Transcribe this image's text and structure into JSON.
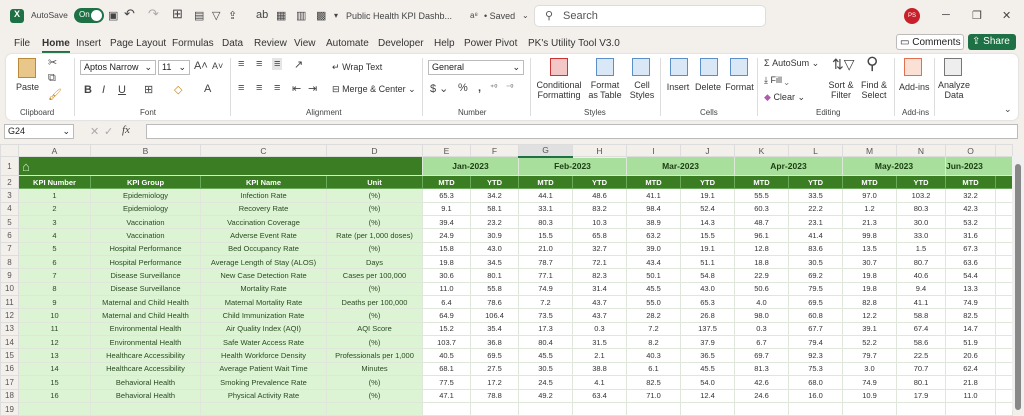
{
  "titlebar": {
    "autosave_label": "AutoSave",
    "autosave_state": "On",
    "file_name": "Public Health KPI Dashb...",
    "saved_status": "• Saved",
    "search_placeholder": "Search",
    "user_initials": "PS"
  },
  "menu": [
    "File",
    "Home",
    "Insert",
    "Page Layout",
    "Formulas",
    "Data",
    "Review",
    "View",
    "Automate",
    "Developer",
    "Help",
    "Power Pivot",
    "PK's Utility Tool V3.0"
  ],
  "menu_active": "Home",
  "actions": {
    "comments": "Comments",
    "share": "Share"
  },
  "ribbon": {
    "clipboard": {
      "paste": "Paste",
      "label": "Clipboard"
    },
    "font": {
      "name": "Aptos Narrow",
      "size": "11",
      "label": "Font"
    },
    "alignment": {
      "wrap": "Wrap Text",
      "merge": "Merge & Center",
      "label": "Alignment"
    },
    "number": {
      "format": "General",
      "label": "Number"
    },
    "styles": {
      "conditional": "Conditional Formatting",
      "format_table": "Format as Table",
      "cell_styles": "Cell Styles",
      "label": "Styles"
    },
    "cells": {
      "insert": "Insert",
      "delete": "Delete",
      "format": "Format",
      "label": "Cells"
    },
    "editing": {
      "autosum": "AutoSum",
      "fill": "Fill",
      "clear": "Clear",
      "sort": "Sort & Filter",
      "find": "Find & Select",
      "label": "Editing"
    },
    "addins": {
      "addins": "Add-ins",
      "label": "Add-ins"
    },
    "analyze": {
      "label": "Analyze Data"
    }
  },
  "formula_bar": {
    "cell_ref": "G24",
    "formula": ""
  },
  "columns": [
    "A",
    "B",
    "C",
    "D",
    "E",
    "F",
    "G",
    "H",
    "I",
    "J",
    "K",
    "L",
    "M",
    "N",
    "O"
  ],
  "months": [
    "Jan-2023",
    "Feb-2023",
    "Mar-2023",
    "Apr-2023",
    "May-2023",
    "Jun-2023"
  ],
  "headers": [
    "KPI Number",
    "KPI Group",
    "KPI Name",
    "Unit"
  ],
  "sub_headers": [
    "MTD",
    "YTD"
  ],
  "rows": [
    {
      "n": "1",
      "g": "Epidemiology",
      "k": "Infection Rate",
      "u": "(%)",
      "v": [
        "65.3",
        "34.2",
        "44.1",
        "48.6",
        "41.1",
        "19.1",
        "55.5",
        "33.5",
        "97.0",
        "103.2",
        "32.2"
      ]
    },
    {
      "n": "2",
      "g": "Epidemiology",
      "k": "Recovery Rate",
      "u": "(%)",
      "v": [
        "9.1",
        "58.1",
        "33.1",
        "83.2",
        "98.4",
        "52.4",
        "60.3",
        "22.2",
        "1.2",
        "80.3",
        "42.3"
      ]
    },
    {
      "n": "3",
      "g": "Vaccination",
      "k": "Vaccination Coverage",
      "u": "(%)",
      "v": [
        "39.4",
        "23.2",
        "80.3",
        "10.3",
        "38.9",
        "14.3",
        "48.7",
        "23.1",
        "21.3",
        "30.0",
        "53.2"
      ]
    },
    {
      "n": "4",
      "g": "Vaccination",
      "k": "Adverse Event Rate",
      "u": "Rate (per 1,000 doses)",
      "v": [
        "24.9",
        "30.9",
        "15.5",
        "65.8",
        "63.2",
        "15.5",
        "96.1",
        "41.4",
        "99.8",
        "33.0",
        "31.6"
      ]
    },
    {
      "n": "5",
      "g": "Hospital Performance",
      "k": "Bed Occupancy Rate",
      "u": "(%)",
      "v": [
        "15.8",
        "43.0",
        "21.0",
        "32.7",
        "39.0",
        "19.1",
        "12.8",
        "83.6",
        "13.5",
        "1.5",
        "67.3"
      ]
    },
    {
      "n": "6",
      "g": "Hospital Performance",
      "k": "Average Length of Stay (ALOS)",
      "u": "Days",
      "v": [
        "19.8",
        "34.5",
        "78.7",
        "72.1",
        "43.4",
        "51.1",
        "18.8",
        "30.5",
        "30.7",
        "80.7",
        "63.6"
      ]
    },
    {
      "n": "7",
      "g": "Disease Surveillance",
      "k": "New Case Detection Rate",
      "u": "Cases per 100,000",
      "v": [
        "30.6",
        "80.1",
        "77.1",
        "82.3",
        "50.1",
        "54.8",
        "22.9",
        "69.2",
        "19.8",
        "40.6",
        "54.4"
      ]
    },
    {
      "n": "8",
      "g": "Disease Surveillance",
      "k": "Mortality Rate",
      "u": "(%)",
      "v": [
        "11.0",
        "55.8",
        "74.9",
        "31.4",
        "45.5",
        "43.0",
        "50.6",
        "79.5",
        "19.8",
        "9.4",
        "13.3"
      ]
    },
    {
      "n": "9",
      "g": "Maternal and Child Health",
      "k": "Maternal Mortality Rate",
      "u": "Deaths per 100,000",
      "v": [
        "6.4",
        "78.6",
        "7.2",
        "43.7",
        "55.0",
        "65.3",
        "4.0",
        "69.5",
        "82.8",
        "41.1",
        "74.9"
      ]
    },
    {
      "n": "10",
      "g": "Maternal and Child Health",
      "k": "Child Immunization Rate",
      "u": "(%)",
      "v": [
        "64.9",
        "106.4",
        "73.5",
        "43.7",
        "28.2",
        "26.8",
        "98.0",
        "60.8",
        "12.2",
        "58.8",
        "82.5"
      ]
    },
    {
      "n": "11",
      "g": "Environmental Health",
      "k": "Air Quality Index (AQI)",
      "u": "AQI Score",
      "v": [
        "15.2",
        "35.4",
        "17.3",
        "0.3",
        "7.2",
        "137.5",
        "0.3",
        "67.7",
        "39.1",
        "67.4",
        "14.7"
      ]
    },
    {
      "n": "12",
      "g": "Environmental Health",
      "k": "Safe Water Access Rate",
      "u": "(%)",
      "v": [
        "103.7",
        "36.8",
        "80.4",
        "31.5",
        "8.2",
        "37.9",
        "6.7",
        "79.4",
        "52.2",
        "58.6",
        "51.9"
      ]
    },
    {
      "n": "13",
      "g": "Healthcare Accessibility",
      "k": "Health Workforce Density",
      "u": "Professionals per 1,000",
      "v": [
        "40.5",
        "69.5",
        "45.5",
        "2.1",
        "40.3",
        "36.5",
        "69.7",
        "92.3",
        "79.7",
        "22.5",
        "20.6"
      ]
    },
    {
      "n": "14",
      "g": "Healthcare Accessibility",
      "k": "Average Patient Wait Time",
      "u": "Minutes",
      "v": [
        "68.1",
        "27.5",
        "30.5",
        "38.8",
        "6.1",
        "45.5",
        "81.3",
        "75.3",
        "3.0",
        "70.7",
        "62.4"
      ]
    },
    {
      "n": "15",
      "g": "Behavioral Health",
      "k": "Smoking Prevalence Rate",
      "u": "(%)",
      "v": [
        "77.5",
        "17.2",
        "24.5",
        "4.1",
        "82.5",
        "54.0",
        "42.6",
        "68.0",
        "74.9",
        "80.1",
        "21.8"
      ]
    },
    {
      "n": "16",
      "g": "Behavioral Health",
      "k": "Physical Activity Rate",
      "u": "(%)",
      "v": [
        "47.1",
        "78.8",
        "49.2",
        "63.4",
        "71.0",
        "12.4",
        "24.6",
        "16.0",
        "10.9",
        "17.9",
        "11.0"
      ]
    }
  ],
  "colors": {
    "excel_green": "#1e7145",
    "header_green": "#3a7d22",
    "month_band": "#a9df9c",
    "label_fill": "#dcf4d4"
  },
  "icons": {
    "home": "home-icon"
  }
}
